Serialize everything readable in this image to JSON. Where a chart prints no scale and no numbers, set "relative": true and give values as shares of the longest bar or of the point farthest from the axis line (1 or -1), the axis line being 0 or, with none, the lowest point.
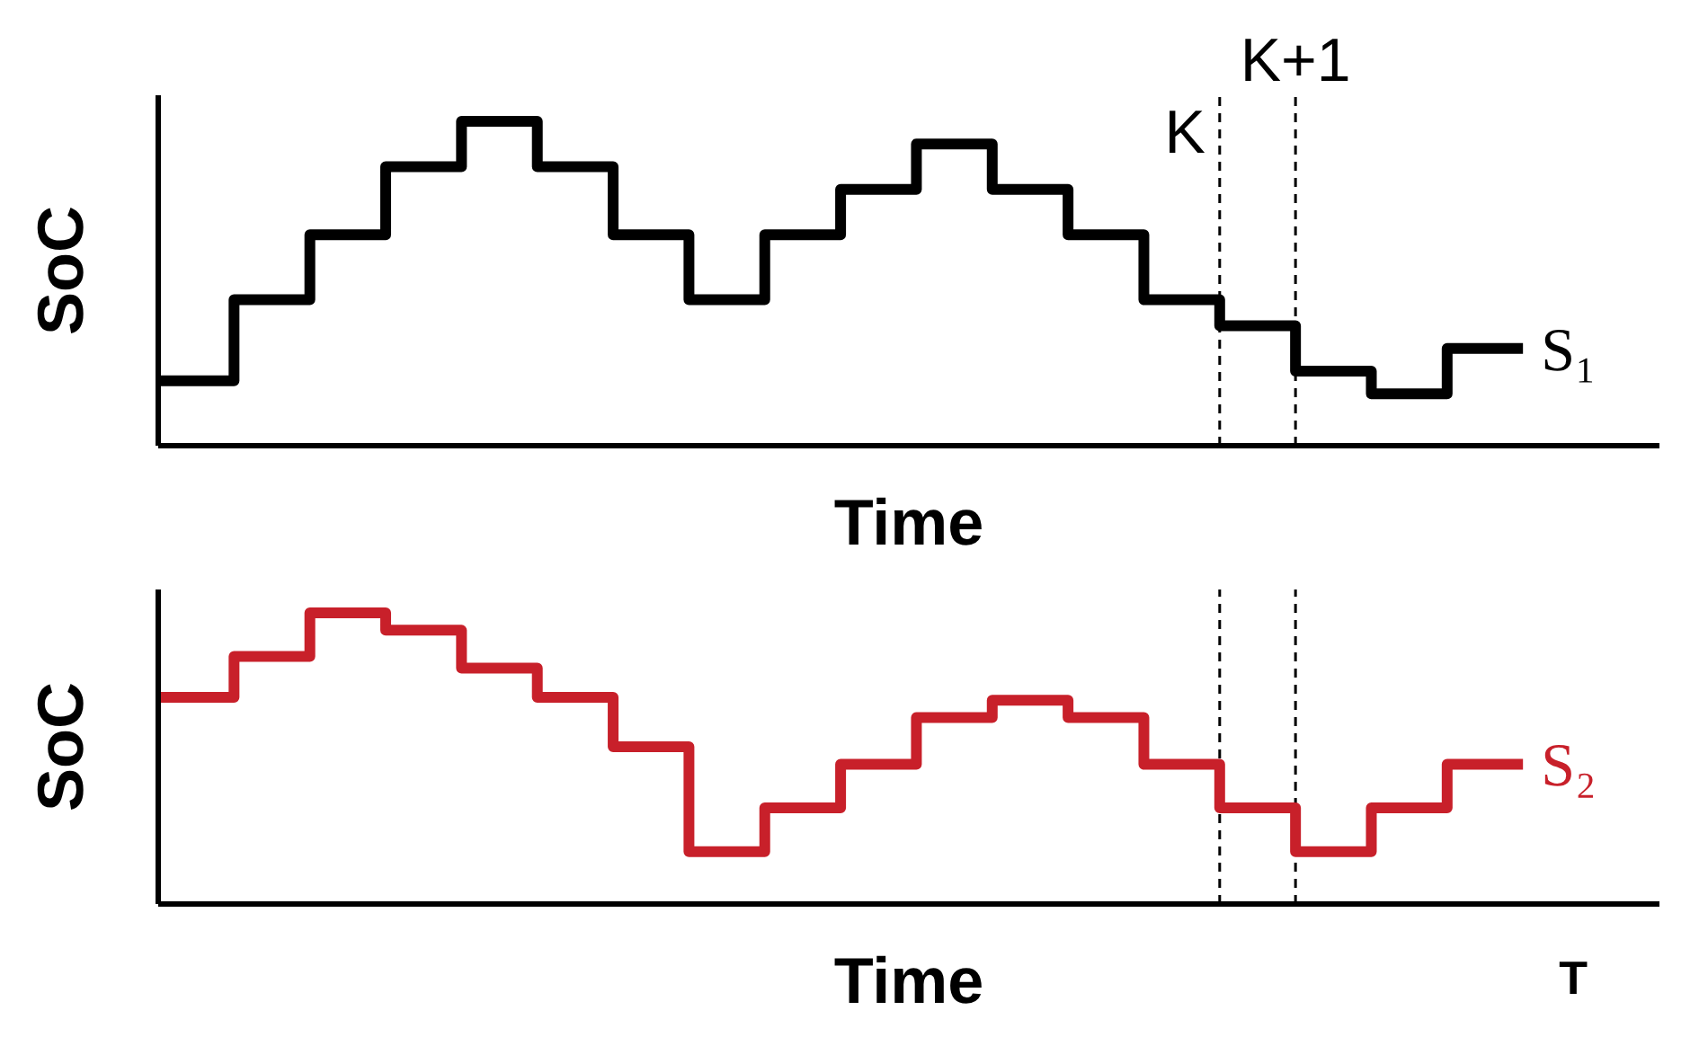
{
  "chart_data": [
    {
      "type": "step",
      "relative": true,
      "xlabel": "Time",
      "ylabel": "SoC",
      "categories": [
        null,
        null,
        null,
        null,
        null,
        null,
        null,
        null,
        null,
        null,
        null,
        null,
        null,
        null,
        null,
        null,
        null,
        null,
        null
      ],
      "grid": false,
      "legend": false,
      "marker": "none",
      "series": [
        {
          "name": "S₁",
          "color": "#000000",
          "values": [
            0.2,
            0.45,
            0.65,
            0.86,
            1,
            0.86,
            0.65,
            0.45,
            0.65,
            0.79,
            0.93,
            0.79,
            0.65,
            0.45,
            0.37,
            0.23,
            0.16,
            0.3,
            0.3
          ]
        }
      ],
      "annotations": [
        "K",
        "K+1"
      ]
    },
    {
      "type": "step",
      "relative": true,
      "xlabel": "Time",
      "ylabel": "SoC",
      "categories": [
        null,
        null,
        null,
        null,
        null,
        null,
        null,
        null,
        null,
        null,
        null,
        null,
        null,
        null,
        null,
        null,
        null,
        null,
        null
      ],
      "grid": false,
      "legend": false,
      "marker": "none",
      "series": [
        {
          "name": "S₂",
          "color": "#c8202a",
          "values": [
            0.71,
            0.85,
            1,
            0.94,
            0.81,
            0.71,
            0.54,
            0.18,
            0.33,
            0.48,
            0.64,
            0.7,
            0.64,
            0.48,
            0.33,
            0.18,
            0.33,
            0.48,
            0.48
          ]
        }
      ],
      "annotations": [
        "T"
      ]
    }
  ]
}
